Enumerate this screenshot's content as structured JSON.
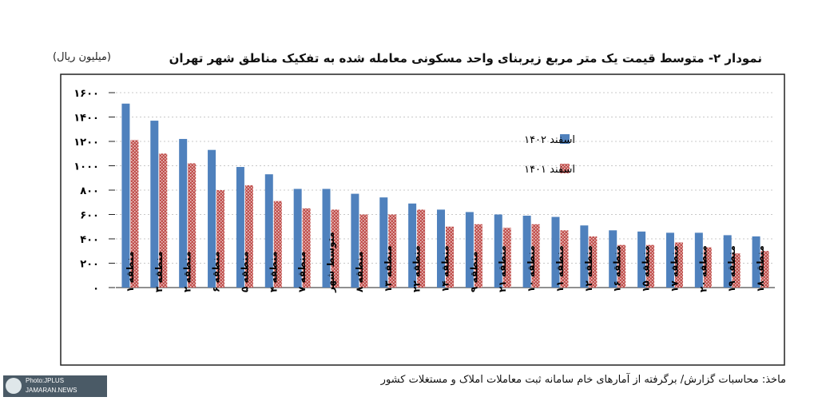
{
  "chart_data": {
    "type": "bar",
    "title": "نمودار ۲- متوسط قیمت یک متر مربع زیربنای واحد مسکونی معامله شده به تفکیک مناطق شهر تهران",
    "ylabel": "(میلیون ریال)",
    "ylim": [
      0,
      1600
    ],
    "yticks": [
      "۰",
      "۲۰۰",
      "۴۰۰",
      "۶۰۰",
      "۸۰۰",
      "۱۰۰۰",
      "۱۲۰۰",
      "۱۴۰۰",
      "۱۶۰۰"
    ],
    "categories": [
      "منطقه ۱",
      "منطقه ۳",
      "منطقه ۲",
      "منطقه ۶",
      "منطقه ۵",
      "منطقه ۴",
      "منطقه ۷",
      "متوسط شهر",
      "منطقه ۸",
      "منطقه ۱۳",
      "منطقه ۲۲",
      "منطقه ۱۴",
      "منطقه ۹",
      "منطقه ۲۱",
      "منطقه ۱۰",
      "منطقه ۱۱",
      "منطقه ۱۲",
      "منطقه ۱۶",
      "منطقه ۱۵",
      "منطقه ۱۷",
      "منطقه ۲۰",
      "منطقه ۱۹",
      "منطقه ۱۸"
    ],
    "series": [
      {
        "name": "اسفند ۱۴۰۲",
        "color": "#4f81bd",
        "values": [
          1510,
          1370,
          1220,
          1130,
          990,
          930,
          810,
          810,
          770,
          740,
          690,
          640,
          620,
          600,
          590,
          580,
          510,
          470,
          460,
          450,
          450,
          430,
          420
        ]
      },
      {
        "name": "اسفند ۱۴۰۱",
        "color": "#c0504d",
        "values": [
          1210,
          1100,
          1020,
          800,
          840,
          710,
          650,
          640,
          600,
          600,
          640,
          500,
          520,
          490,
          520,
          470,
          420,
          350,
          350,
          370,
          330,
          280,
          300
        ]
      }
    ],
    "grid": true,
    "legend": "top-right"
  },
  "source": "ماخذ: محاسبات گزارش/ برگرفته از آمارهای خام سامانه ثبت معاملات املاک و مستغلات کشور",
  "watermark": {
    "line1": "Photo:JPLUS",
    "line2": "JAMARAN.NEWS"
  }
}
